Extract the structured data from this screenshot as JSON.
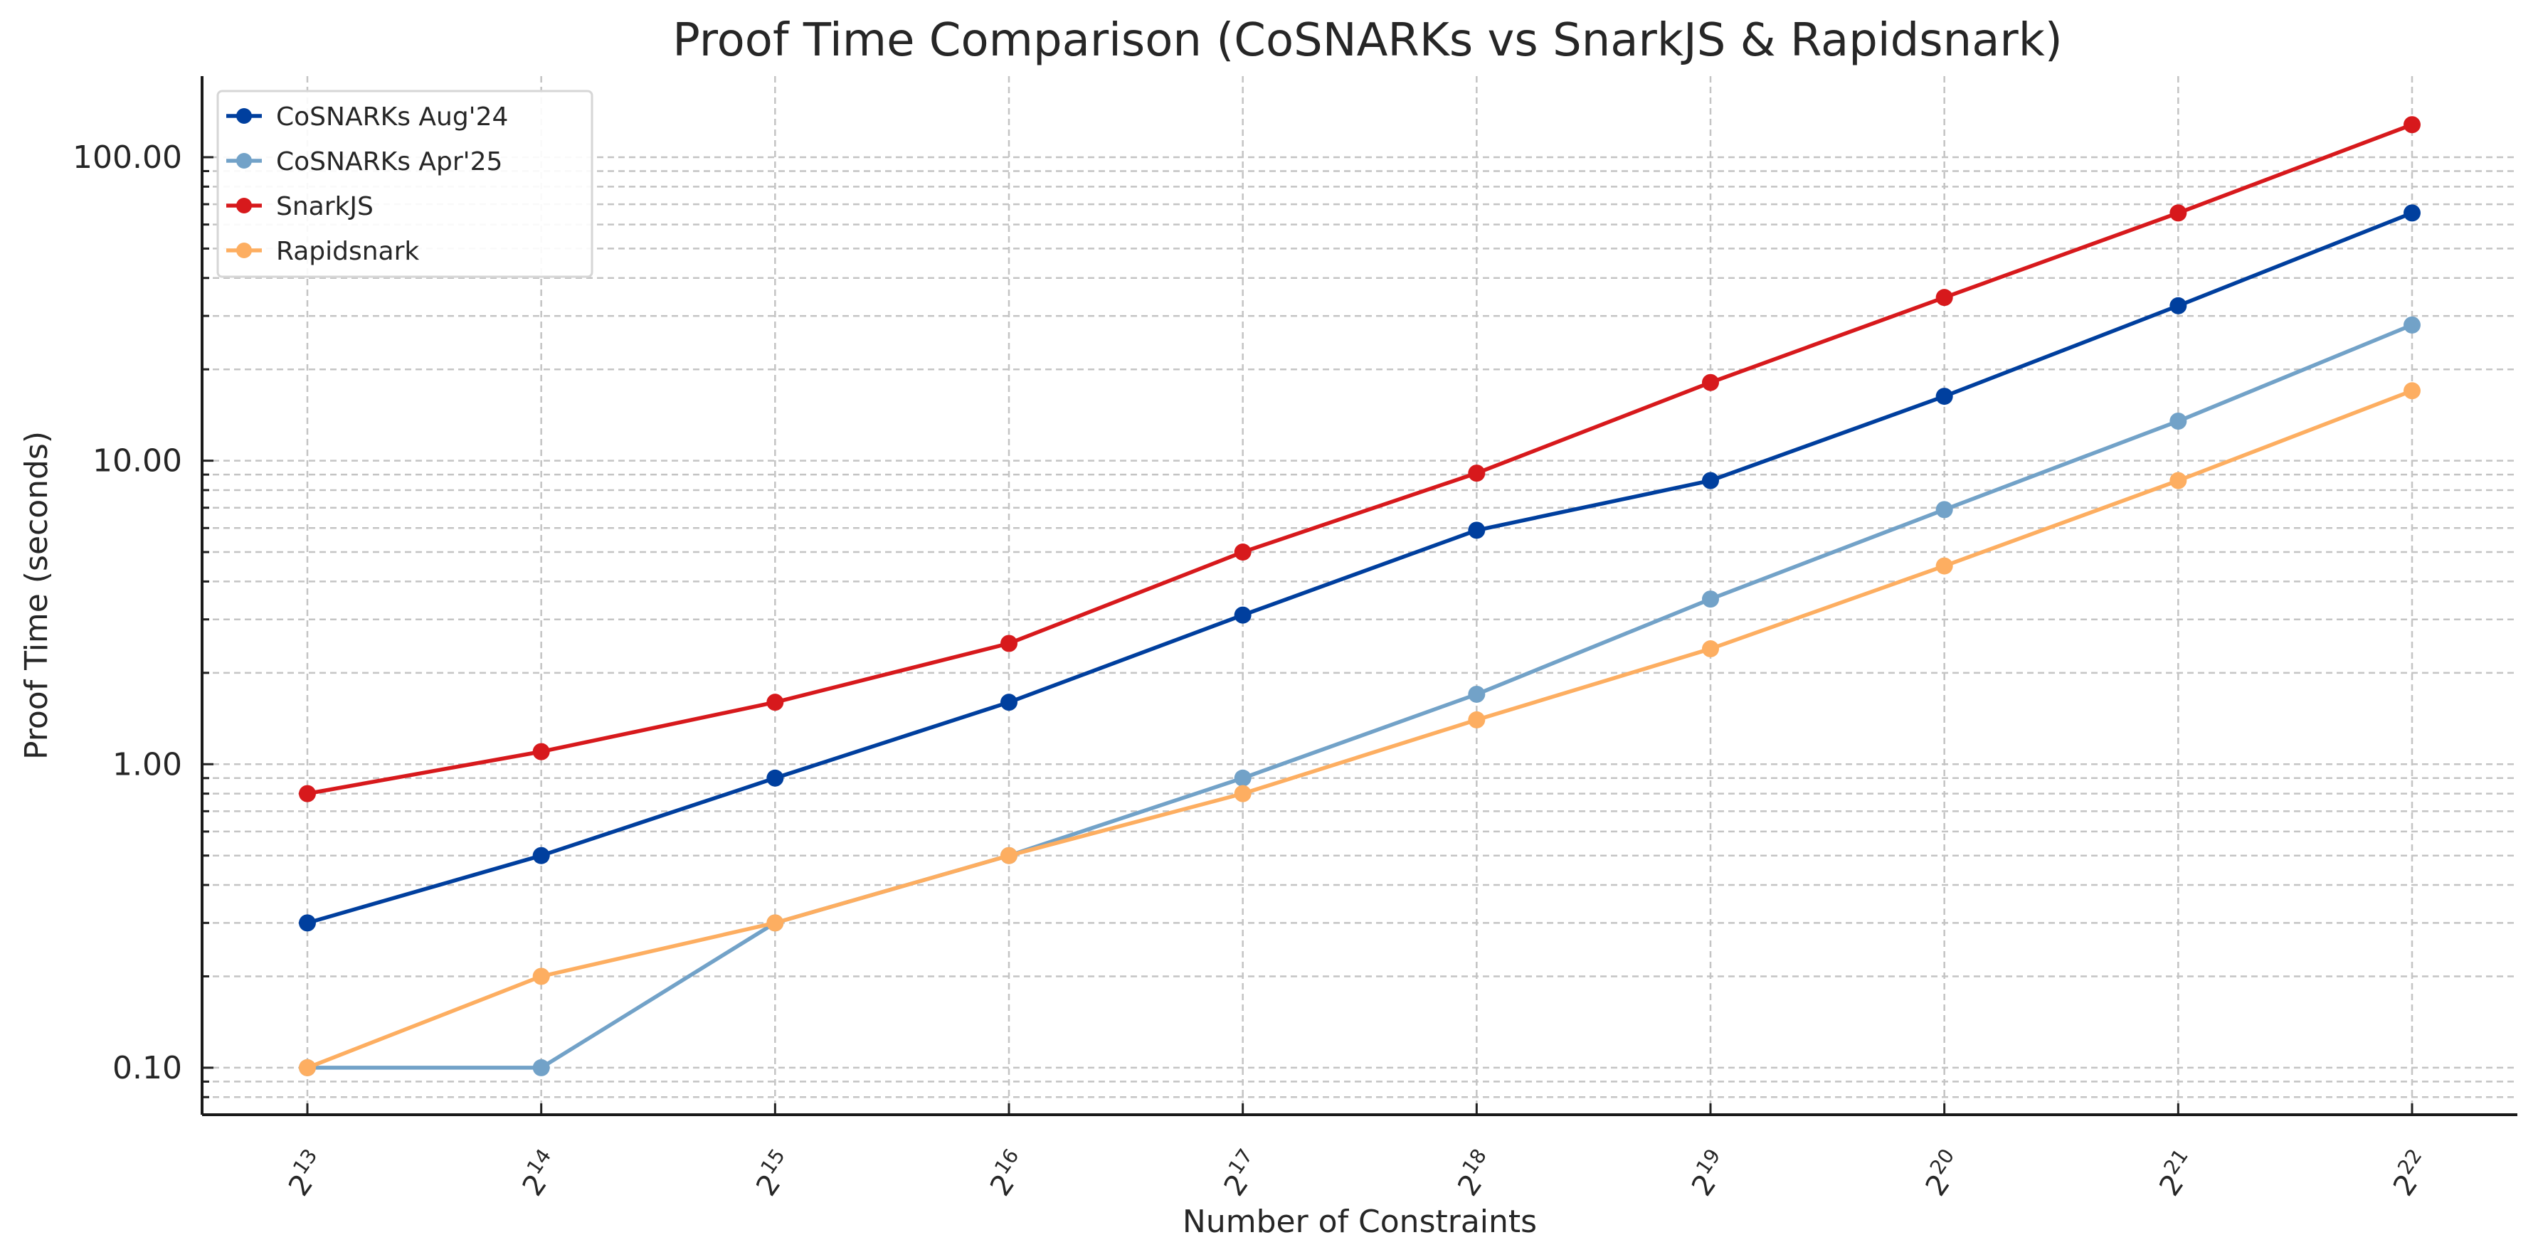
{
  "chart_data": {
    "type": "line",
    "title": "Proof Time Comparison (CoSNARKs vs SnarkJS & Rapidsnark)",
    "xlabel": "Number of Constraints",
    "ylabel": "Proof Time (seconds)",
    "x_exponents": [
      13,
      14,
      15,
      16,
      17,
      18,
      19,
      20,
      21,
      22
    ],
    "categories": [
      "2^13",
      "2^14",
      "2^15",
      "2^16",
      "2^17",
      "2^18",
      "2^19",
      "2^20",
      "2^21",
      "2^22"
    ],
    "y_scale": "log",
    "ylim": [
      0.07,
      185
    ],
    "y_ticks": [
      0.1,
      1,
      10,
      100
    ],
    "y_tick_labels": [
      "0.10",
      "1.00",
      "10.00",
      "100.00"
    ],
    "grid": true,
    "legend_position": "top-left",
    "series": [
      {
        "name": "CoSNARKs Aug'24",
        "color": "#003f9e",
        "values": [
          0.3,
          0.5,
          0.9,
          1.6,
          3.1,
          5.9,
          8.6,
          16.3,
          32.4,
          65.5
        ]
      },
      {
        "name": "CoSNARKs Apr'25",
        "color": "#72a2c8",
        "values": [
          0.1,
          0.1,
          0.3,
          0.5,
          0.9,
          1.7,
          3.5,
          6.9,
          13.5,
          28
        ]
      },
      {
        "name": "SnarkJS",
        "color": "#d7191c",
        "values": [
          0.8,
          1.1,
          1.6,
          2.5,
          5.0,
          9.1,
          18.1,
          34.5,
          65.5,
          128
        ]
      },
      {
        "name": "Rapidsnark",
        "color": "#fdae61",
        "values": [
          0.1,
          0.2,
          0.3,
          0.5,
          0.8,
          1.4,
          2.4,
          4.5,
          8.6,
          17
        ]
      }
    ]
  }
}
